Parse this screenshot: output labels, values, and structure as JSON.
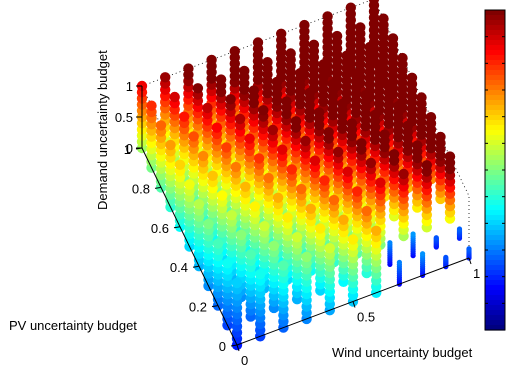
{
  "chart_data": {
    "type": "scatter",
    "subtype": "3d-stacked-scatter",
    "xlabel": "Wind uncertainty budget",
    "ylabel": "PV uncertainty budget",
    "zlabel": "Demand uncertainty budget",
    "xlim": [
      0,
      1
    ],
    "ylim": [
      0,
      1
    ],
    "zlim": [
      0,
      1
    ],
    "xticks": [
      "0",
      "0.5",
      "1"
    ],
    "yticks": [
      "0",
      "0.2",
      "0.4",
      "0.6",
      "0.8",
      "1"
    ],
    "zticks": [
      "0",
      "0.5",
      "1"
    ],
    "grid": "off",
    "colormap": "jet",
    "colorbar": "right",
    "grid_values": [
      0,
      0.1,
      0.2,
      0.3,
      0.4,
      0.5,
      0.6,
      0.7,
      0.8,
      0.9,
      1.0
    ],
    "stack_points": 11,
    "colors": {
      "jet": [
        "#00008f",
        "#0000ff",
        "#0080ff",
        "#00ffff",
        "#80ff80",
        "#ffff00",
        "#ff8000",
        "#ff0000",
        "#800000"
      ]
    }
  }
}
